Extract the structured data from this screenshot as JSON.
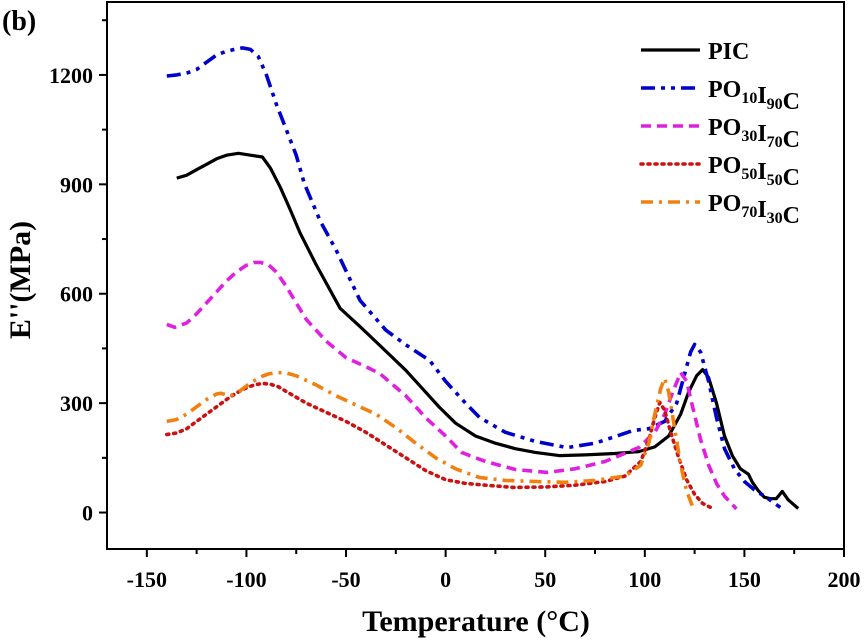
{
  "chart_data": {
    "type": "line",
    "panel_label": "(b)",
    "title": "",
    "xlabel": "Temperature (°C)",
    "ylabel": "E''(MPa)",
    "xlim": [
      -170,
      200
    ],
    "ylim": [
      -100,
      1400
    ],
    "xticks": [
      -150,
      -100,
      -50,
      0,
      50,
      100,
      150,
      200
    ],
    "xtick_labels": [
      "-150",
      "-100",
      "-50",
      "0",
      "50",
      "100",
      "150",
      "200"
    ],
    "xminor": [
      -125,
      -75,
      -25,
      25,
      75,
      125,
      175
    ],
    "yticks": [
      0,
      300,
      600,
      900,
      1200
    ],
    "ytick_labels": [
      "0",
      "300",
      "600",
      "900",
      "1200"
    ],
    "yminor": [
      150,
      450,
      750,
      1050,
      1350
    ],
    "grid": false,
    "legend_position": "top-right",
    "series": [
      {
        "name": "PIC",
        "label_parts": [
          [
            "PIC",
            ""
          ]
        ],
        "color": "#000000",
        "style": "solid",
        "x": [
          -135,
          -130,
          -125,
          -120,
          -115,
          -110,
          -104,
          -98,
          -92,
          -88,
          -83,
          -78,
          -73,
          -65,
          -53,
          -43,
          -33,
          -20,
          -10,
          -3,
          5,
          15,
          25,
          35,
          45,
          57,
          70,
          85,
          97,
          105,
          112,
          118,
          122,
          126,
          129,
          132,
          136,
          140,
          144,
          148,
          152,
          154,
          157,
          160,
          163,
          166,
          169,
          172,
          177
        ],
        "y": [
          917,
          925,
          940,
          955,
          970,
          980,
          985,
          980,
          975,
          945,
          892,
          830,
          766,
          680,
          560,
          510,
          458,
          390,
          330,
          288,
          245,
          210,
          190,
          175,
          165,
          156,
          158,
          162,
          167,
          180,
          210,
          270,
          330,
          375,
          392,
          370,
          300,
          210,
          155,
          120,
          105,
          83,
          60,
          42,
          38,
          38,
          58,
          35,
          11
        ]
      },
      {
        "name": "PO10I90C",
        "label_parts": [
          [
            "PO",
            "10"
          ],
          [
            "I",
            "90"
          ],
          [
            "C",
            ""
          ]
        ],
        "color": "#0000cc",
        "style": "dashdotdot",
        "x": [
          -140,
          -135,
          -130,
          -125,
          -120,
          -115,
          -110,
          -106,
          -102,
          -98,
          -94,
          -90,
          -85,
          -80,
          -75,
          -71,
          -63,
          -55,
          -43,
          -30,
          -20,
          -8,
          0,
          10,
          17,
          30,
          45,
          61,
          75,
          86,
          94,
          102,
          110,
          116,
          120,
          123,
          125,
          128,
          132,
          136,
          140,
          145,
          150,
          155,
          160,
          164,
          168
        ],
        "y": [
          1197,
          1200,
          1205,
          1215,
          1235,
          1255,
          1265,
          1270,
          1274,
          1270,
          1250,
          1200,
          1120,
          1050,
          980,
          903,
          800,
          720,
          582,
          500,
          460,
          417,
          360,
          300,
          261,
          220,
          195,
          178,
          190,
          210,
          225,
          230,
          250,
          300,
          380,
          440,
          461,
          440,
          360,
          260,
          175,
          120,
          85,
          62,
          45,
          30,
          14
        ]
      },
      {
        "name": "PO30I70C",
        "label_parts": [
          [
            "PO",
            "30"
          ],
          [
            "I",
            "70"
          ],
          [
            "C",
            ""
          ]
        ],
        "color": "#e020e0",
        "style": "dash",
        "x": [
          -140,
          -136,
          -130,
          -125,
          -120,
          -115,
          -110,
          -105,
          -100,
          -96,
          -93,
          -89,
          -85,
          -80,
          -75,
          -70,
          -60,
          -50,
          -40,
          -33,
          -20,
          -10,
          0,
          8,
          20,
          35,
          51,
          65,
          80,
          97,
          105,
          110,
          114,
          118,
          121,
          124,
          128,
          132,
          136,
          140,
          146
        ],
        "y": [
          516,
          508,
          520,
          545,
          575,
          605,
          635,
          660,
          678,
          686,
          686,
          680,
          660,
          620,
          575,
          530,
          470,
          425,
          400,
          381,
          320,
          260,
          210,
          165,
          140,
          118,
          110,
          120,
          140,
          178,
          220,
          270,
          330,
          384,
          360,
          290,
          200,
          130,
          80,
          45,
          10
        ]
      },
      {
        "name": "PO50I50C",
        "label_parts": [
          [
            "PO",
            "50"
          ],
          [
            "I",
            "50"
          ],
          [
            "C",
            ""
          ]
        ],
        "color": "#cc1111",
        "style": "dot",
        "x": [
          -140,
          -135,
          -130,
          -125,
          -120,
          -115,
          -110,
          -105,
          -100,
          -96,
          -92,
          -88,
          -84,
          -80,
          -70,
          -60,
          -50,
          -40,
          -30,
          -20,
          -10,
          0,
          10,
          20,
          34,
          50,
          65,
          80,
          90,
          98,
          102,
          105,
          107.5,
          110,
          113,
          117,
          121,
          125,
          129,
          133
        ],
        "y": [
          214,
          218,
          230,
          250,
          270,
          290,
          310,
          328,
          342,
          350,
          354,
          352,
          345,
          332,
          300,
          275,
          250,
          220,
          185,
          150,
          115,
          90,
          80,
          75,
          69,
          70,
          75,
          85,
          100,
          140,
          200,
          260,
          302,
          280,
          220,
          150,
          90,
          50,
          25,
          14
        ]
      },
      {
        "name": "PO70I30C",
        "label_parts": [
          [
            "PO",
            "70"
          ],
          [
            "I",
            "30"
          ],
          [
            "C",
            ""
          ]
        ],
        "color": "#f08010",
        "style": "dashdot",
        "x": [
          -140,
          -135,
          -130,
          -125,
          -120,
          -115,
          -113,
          -108,
          -103,
          -98,
          -93,
          -89,
          -85,
          -80,
          -75,
          -65,
          -55,
          -45,
          -35,
          -25,
          -15,
          -5,
          5,
          17,
          30,
          45,
          60,
          75,
          90,
          98,
          102,
          105,
          108,
          110,
          112,
          115,
          118,
          121,
          124
        ],
        "y": [
          250,
          255,
          270,
          290,
          310,
          325,
          327,
          320,
          335,
          355,
          372,
          380,
          384,
          383,
          375,
          350,
          320,
          295,
          270,
          233,
          190,
          150,
          120,
          96,
          88,
          85,
          83,
          88,
          100,
          130,
          190,
          270,
          340,
          368,
          330,
          230,
          130,
          60,
          16
        ]
      }
    ]
  }
}
